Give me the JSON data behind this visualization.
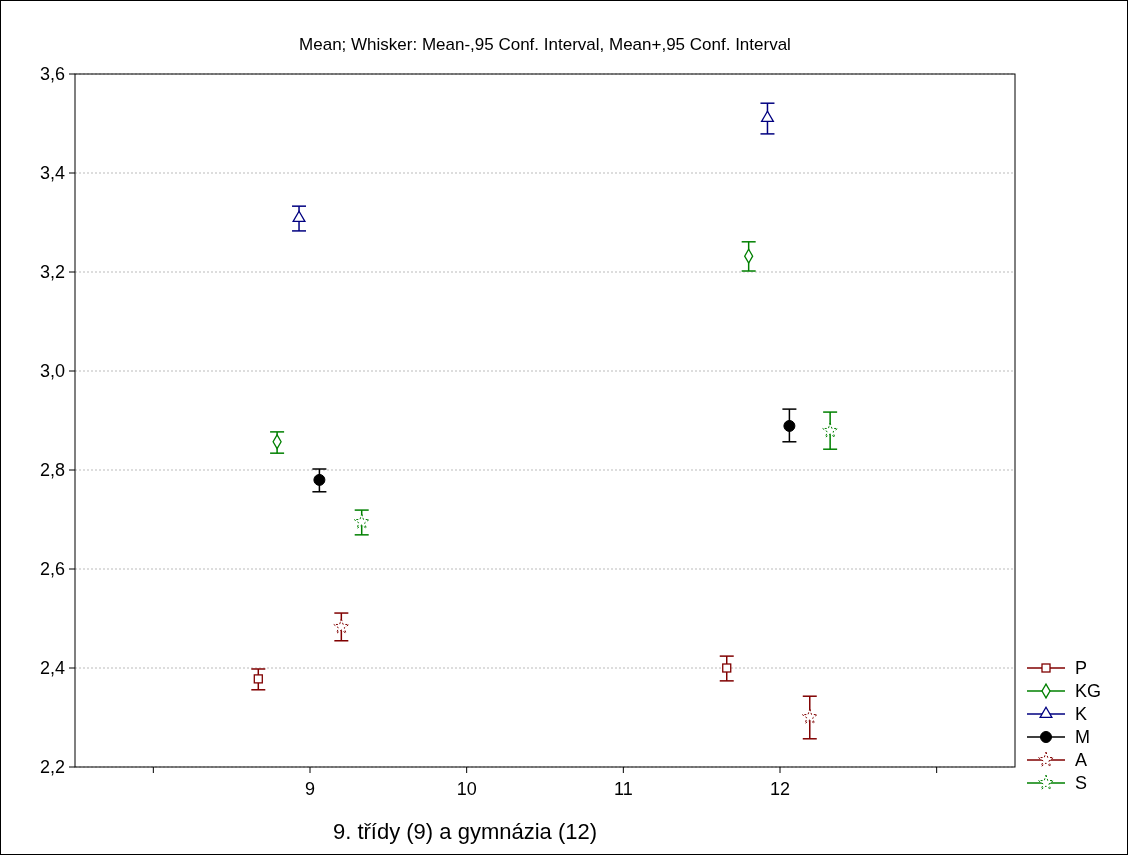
{
  "chart_data": {
    "type": "scatter",
    "title": "Mean;  Whisker: Mean-,95 Conf. Interval, Mean+,95 Conf. Interval",
    "xlabel": "9. třídy (9) a gymnázia (12)",
    "xlim": [
      7.5,
      13.5
    ],
    "xticks": [
      {
        "value": 8,
        "label": null
      },
      9,
      10,
      11,
      12,
      {
        "value": 13,
        "label": null
      }
    ],
    "ylim": [
      2.2,
      3.6
    ],
    "yticks": [
      {
        "value": 2.2,
        "label": "2,2"
      },
      {
        "value": 2.4,
        "label": "2,4"
      },
      {
        "value": 2.6,
        "label": "2,6"
      },
      {
        "value": 2.8,
        "label": "2,8"
      },
      {
        "value": 3.0,
        "label": "3,0"
      },
      {
        "value": 3.2,
        "label": "3,2"
      },
      {
        "value": 3.4,
        "label": "3,4"
      },
      {
        "value": 3.6,
        "label": "3,6"
      }
    ],
    "grid": "y",
    "legend": "bottom right",
    "series": [
      {
        "name": "P",
        "color": "#800000",
        "marker": "square",
        "x": [
          8.67,
          11.66
        ],
        "values": [
          2.378,
          2.4
        ],
        "errors": [
          [
            2.356,
            2.398
          ],
          [
            2.374,
            2.424
          ]
        ]
      },
      {
        "name": "KG",
        "color": "#008000",
        "marker": "diamond",
        "x": [
          8.79,
          11.8
        ],
        "values": [
          2.857,
          3.232
        ],
        "errors": [
          [
            2.834,
            2.877
          ],
          [
            3.202,
            3.261
          ]
        ]
      },
      {
        "name": "K",
        "color": "#000080",
        "marker": "triangle",
        "x": [
          8.93,
          11.92
        ],
        "values": [
          3.309,
          3.511
        ],
        "errors": [
          [
            3.283,
            3.333
          ],
          [
            3.479,
            3.541
          ]
        ]
      },
      {
        "name": "M",
        "color": "#000000",
        "marker": "circle",
        "x": [
          9.06,
          12.06
        ],
        "values": [
          2.78,
          2.889
        ],
        "errors": [
          [
            2.756,
            2.802
          ],
          [
            2.857,
            2.923
          ]
        ]
      },
      {
        "name": "A",
        "color": "#800000",
        "marker": "star",
        "x": [
          9.2,
          12.19
        ],
        "values": [
          2.483,
          2.301
        ],
        "errors": [
          [
            2.455,
            2.511
          ],
          [
            2.257,
            2.343
          ]
        ]
      },
      {
        "name": "S",
        "color": "#008000",
        "marker": "star",
        "x": [
          9.33,
          12.32
        ],
        "values": [
          2.695,
          2.879
        ],
        "errors": [
          [
            2.669,
            2.719
          ],
          [
            2.842,
            2.917
          ]
        ]
      }
    ]
  }
}
